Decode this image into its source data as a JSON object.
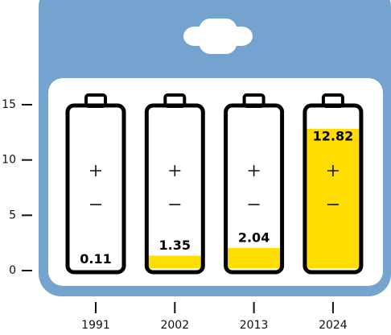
{
  "chart_data": {
    "type": "bar",
    "categories": [
      "1991",
      "2002",
      "2013",
      "2024"
    ],
    "values": [
      0.11,
      1.35,
      2.04,
      12.82
    ],
    "color": "#ffdd00",
    "ylim": [
      0,
      15
    ],
    "yticks": [
      0,
      5,
      10,
      15
    ]
  }
}
